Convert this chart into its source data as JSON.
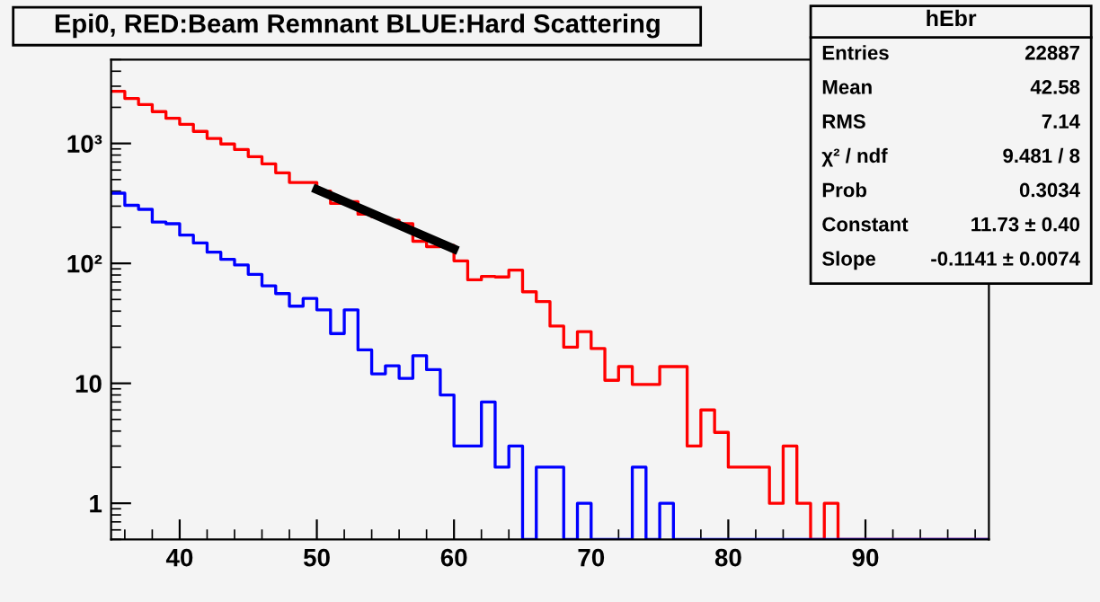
{
  "chart_data": {
    "type": "histogram",
    "title": "Epi0, RED:Beam Remnant BLUE:Hard Scattering",
    "bins": [
      35,
      36,
      37,
      38,
      39,
      40,
      41,
      42,
      43,
      44,
      45,
      46,
      47,
      48,
      49,
      50,
      51,
      52,
      53,
      54,
      55,
      56,
      57,
      58,
      59,
      60,
      61,
      62,
      63,
      64,
      65,
      66,
      67,
      68,
      69,
      70,
      71,
      72,
      73,
      74,
      75,
      76,
      77,
      78,
      79,
      80,
      81,
      82,
      83,
      84,
      85,
      86,
      87,
      88,
      89,
      90,
      91,
      92,
      93,
      94,
      95,
      96,
      97,
      98,
      99
    ],
    "series": [
      {
        "color": "#ff0000",
        "values": [
          2720,
          2370,
          2110,
          1840,
          1620,
          1445,
          1260,
          1100,
          990,
          890,
          776,
          676,
          569,
          473,
          473,
          400,
          316,
          327,
          257,
          245,
          229,
          214,
          153,
          138,
          141,
          105,
          73,
          78,
          77,
          88,
          58,
          48,
          30,
          20,
          27,
          19.5,
          10.6,
          13.8,
          9.8,
          9.8,
          13.8,
          13.8,
          3,
          6,
          3.9,
          2,
          2,
          2,
          1,
          3,
          1,
          null,
          1,
          null,
          null,
          null,
          null,
          null,
          null,
          null,
          null,
          null,
          null,
          null
        ]
      },
      {
        "color": "#0000ff",
        "values": [
          385,
          305,
          282,
          221,
          214,
          172,
          148,
          124,
          108,
          97,
          81,
          65,
          56,
          44,
          51,
          41,
          26,
          41,
          19,
          12,
          14,
          11,
          17,
          13,
          8,
          3,
          3,
          7,
          2,
          3,
          null,
          2,
          2,
          null,
          1,
          null,
          null,
          null,
          2,
          null,
          1,
          null,
          null,
          null,
          null,
          null,
          null,
          null,
          null,
          null,
          null,
          null,
          null,
          null,
          null,
          null,
          null,
          null,
          null,
          null,
          null,
          null,
          null,
          null
        ]
      },
      {
        "type": "line",
        "color": "#000000",
        "x": [
          50,
          60
        ],
        "values": [
          413,
          132
        ]
      }
    ],
    "log": "y",
    "xlim": [
      35,
      99
    ],
    "ylim": [
      0.5,
      5000
    ],
    "xticks": [
      40,
      50,
      60,
      70,
      80,
      90
    ],
    "yticks": [
      1,
      10,
      {
        "value": 100,
        "label": "10²"
      },
      {
        "value": 1000,
        "label": "10³"
      }
    ],
    "grid": false,
    "legend": false,
    "annotations": [
      "hEbr",
      "Entries",
      "22887",
      "Mean",
      "42.58",
      "RMS",
      "7.14",
      "χ² / ndf",
      "9.481 / 8",
      "Prob",
      "0.3034",
      "Constant",
      "11.73 ± 0.40",
      "Slope",
      "-0.1141 ± 0.0074"
    ]
  }
}
